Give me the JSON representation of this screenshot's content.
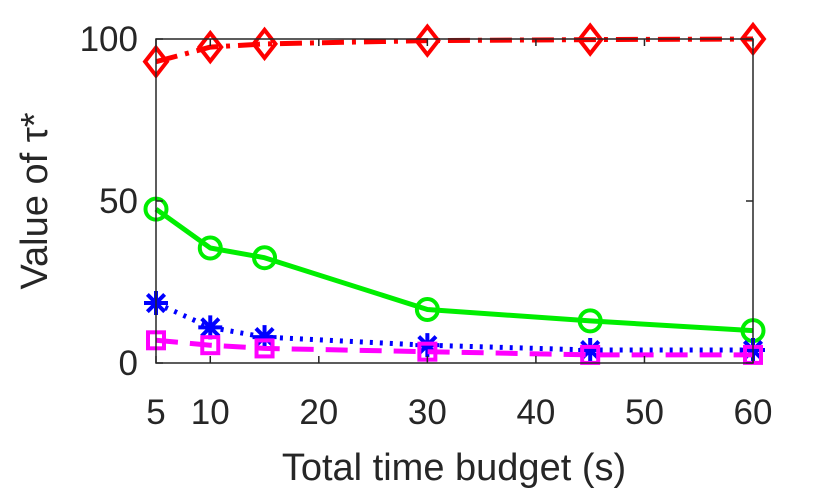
{
  "chart_data": {
    "type": "line",
    "xlabel": "Total time budget (s)",
    "ylabel": "Value of τ*",
    "x": [
      5,
      10,
      15,
      30,
      45,
      60
    ],
    "xticks": [
      "5",
      "10",
      "20",
      "30",
      "40",
      "50",
      "60"
    ],
    "xtick_values": [
      5,
      10,
      20,
      30,
      40,
      50,
      60
    ],
    "yticks": [
      "0",
      "50",
      "100"
    ],
    "ytick_values": [
      0,
      50,
      100
    ],
    "xlim": [
      5,
      60
    ],
    "ylim": [
      0,
      100
    ],
    "grid": false,
    "series": [
      {
        "color": "#ff0000",
        "marker": "diamond",
        "line": "dashdot",
        "values": [
          93,
          97.5,
          98.5,
          99.5,
          99.8,
          100
        ]
      },
      {
        "color": "#00ee00",
        "marker": "circle",
        "line": "solid",
        "values": [
          47.5,
          35.5,
          32.5,
          16.5,
          13,
          10
        ]
      },
      {
        "color": "#0000ff",
        "marker": "asterisk",
        "line": "dotted",
        "values": [
          18.5,
          11,
          8,
          5.5,
          4,
          4
        ]
      },
      {
        "color": "#ff00ff",
        "marker": "square",
        "line": "dashed",
        "values": [
          7,
          5.5,
          4.5,
          3.5,
          2.5,
          2.5
        ]
      }
    ]
  }
}
